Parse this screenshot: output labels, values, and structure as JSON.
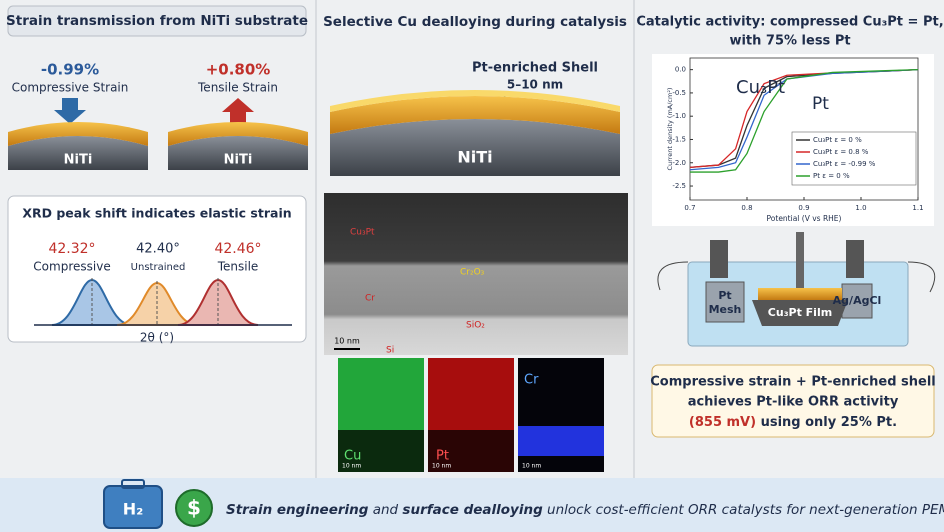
{
  "panel_strain": {
    "title": "Strain transmission from NiTi substrate",
    "compressive": {
      "value": "-0.99%",
      "label": "Compressive Strain"
    },
    "tensile": {
      "value": "+0.80%",
      "label": "Tensile Strain"
    },
    "substrate": "NiTi",
    "xrd": {
      "title": "XRD peak shift indicates elastic strain",
      "peaks": [
        {
          "angle": "42.32°",
          "label": "Compressive"
        },
        {
          "angle": "42.40°",
          "label": "Unstrained"
        },
        {
          "angle": "42.46°",
          "label": "Tensile"
        }
      ],
      "axis_label": "2θ (°)"
    }
  },
  "panel_dealloy": {
    "title": "Selective Cu dealloying during catalysis",
    "shell_label": "Pt-enriched Shell",
    "shell_thickness": "5–10 nm",
    "substrate": "NiTi",
    "tem_labels": [
      "Cu₃Pt",
      "Cr₂O₃",
      "Cr",
      "SiO₂",
      "Si"
    ],
    "tem_scale": "10 nm",
    "eds_maps": [
      {
        "element": "Cu",
        "scale": "10 nm"
      },
      {
        "element": "Pt",
        "scale": "10 nm"
      },
      {
        "element": "Cr",
        "scale": "10 nm"
      }
    ]
  },
  "panel_activity": {
    "title_lines": [
      "Catalytic activity: compressed Cu₃Pt = Pt,",
      "with 75% less Pt"
    ],
    "chart_data": {
      "type": "line",
      "xlabel": "Potential (V vs RHE)",
      "ylabel": "Current density (mA/cm²)",
      "annotations": [
        "Cu₃Pt",
        "Pt"
      ],
      "x": [
        0.7,
        0.75,
        0.78,
        0.8,
        0.83,
        0.87,
        0.95,
        1.05,
        1.1
      ],
      "series": [
        {
          "name": "Cu₃Pt ε = 0 %",
          "color": "#333333",
          "values": [
            -2.1,
            -2.05,
            -1.9,
            -1.2,
            -0.4,
            -0.15,
            -0.08,
            -0.03,
            0
          ]
        },
        {
          "name": "Cu₃Pt ε = 0.8 %",
          "color": "#d62728",
          "values": [
            -2.1,
            -2.05,
            -1.7,
            -0.9,
            -0.3,
            -0.12,
            -0.07,
            -0.03,
            0
          ]
        },
        {
          "name": "Cu₃Pt ε = -0.99 %",
          "color": "#3366cc",
          "values": [
            -2.15,
            -2.1,
            -2.0,
            -1.45,
            -0.55,
            -0.2,
            -0.08,
            -0.03,
            0
          ]
        },
        {
          "name": "Pt ε = 0 %",
          "color": "#2ca02c",
          "values": [
            -2.2,
            -2.2,
            -2.15,
            -1.8,
            -0.9,
            -0.2,
            -0.06,
            -0.02,
            0
          ]
        }
      ],
      "xlim": [
        0.7,
        1.1
      ],
      "xticks": [
        0.7,
        0.8,
        0.9,
        {
          "value": 1,
          "label": "1.0"
        },
        1.1
      ],
      "ylim": [
        -2.8,
        0.25
      ],
      "yticks": [
        {
          "value": 0,
          "label": "0.0"
        },
        -0.5,
        {
          "value": -1,
          "label": "-1.0"
        },
        -1.5,
        {
          "value": -2,
          "label": "-2.0"
        },
        -2.5
      ]
    },
    "cell_labels": {
      "counter": [
        "Pt",
        "Mesh"
      ],
      "working": "Cu₃Pt Film",
      "reference": "Ag/AgCl"
    },
    "summary": {
      "line1": "Compressive strain + Pt-enriched shell",
      "line2": "achieves Pt-like ORR activity",
      "highlight": "(855 mV)",
      "line3": " using only 25% Pt."
    }
  },
  "banner": {
    "icons": [
      "H₂",
      "$"
    ],
    "segments": [
      "Strain engineering",
      " and ",
      "surface dealloying",
      " unlock cost-efficient ORR catalysts for next-generation PEMFCs"
    ]
  }
}
